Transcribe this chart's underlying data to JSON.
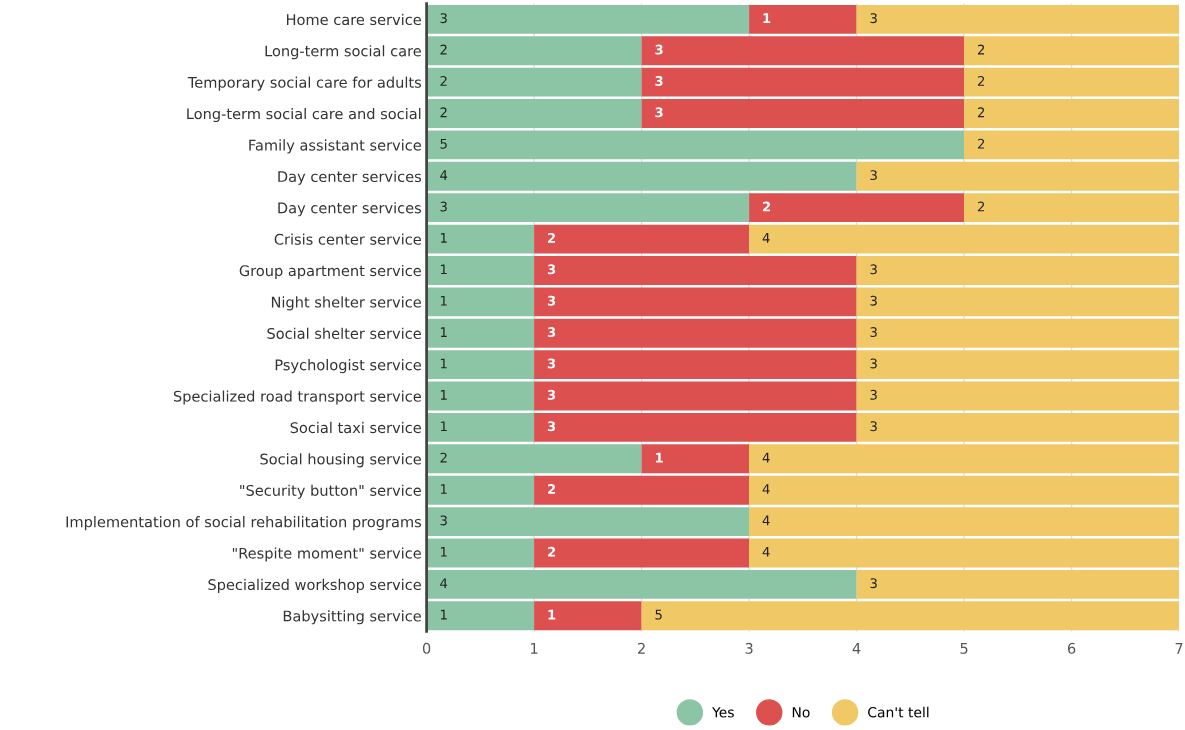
{
  "chart_data": {
    "type": "bar",
    "orientation": "horizontal",
    "stacked": true,
    "grid": "x",
    "legend": "bottom",
    "categories": [
      "Home care service",
      "Long-term social care",
      "Temporary social care for adults",
      "Long-term social care and social",
      "Family assistant service",
      "Day center services",
      "Day center services",
      "Crisis center service",
      "Group apartment service",
      "Night shelter service",
      "Social shelter service",
      "Psychologist service",
      "Specialized road transport service",
      "Social taxi service",
      "Social housing service",
      "\"Security button\" service",
      "Implementation of social rehabilitation programs",
      "\"Respite moment\" service",
      "Specialized workshop service",
      "Babysitting service"
    ],
    "series": [
      {
        "name": "Yes",
        "color": "#8cc5a5",
        "values": [
          3,
          2,
          2,
          2,
          5,
          4,
          3,
          1,
          1,
          1,
          1,
          1,
          1,
          1,
          2,
          1,
          3,
          1,
          4,
          1
        ],
        "value_labels": [
          "3",
          "2",
          "2",
          "2",
          "5",
          "4",
          "3",
          "1",
          "1",
          "1",
          "1",
          "1",
          "1",
          "1",
          "2",
          "1",
          "3",
          "1",
          "4",
          "1"
        ]
      },
      {
        "name": "No",
        "color": "#dc5050",
        "values": [
          1,
          3,
          3,
          3,
          0,
          0,
          2,
          2,
          3,
          3,
          3,
          3,
          3,
          3,
          1,
          2,
          0,
          2,
          0,
          1
        ],
        "value_labels": [
          "1",
          "3",
          "3",
          "3",
          null,
          null,
          "2",
          "2",
          "3",
          "3",
          "3",
          "3",
          "3",
          "3",
          "1",
          "2",
          null,
          "2",
          null,
          "1"
        ]
      },
      {
        "name": "Can't tell",
        "color": "#f0c866",
        "values": [
          3,
          2,
          2,
          2,
          2,
          3,
          2,
          4,
          3,
          3,
          3,
          3,
          3,
          3,
          4,
          4,
          4,
          4,
          3,
          5
        ],
        "value_labels": [
          "3",
          "2",
          "2",
          "2",
          "2",
          "3",
          "2",
          "4",
          "3",
          "3",
          "3",
          "3",
          "3",
          "3",
          "4",
          "4",
          "4",
          "4",
          "3",
          "5"
        ]
      }
    ],
    "xlim": [
      0,
      7
    ],
    "xticks": [
      0,
      1,
      2,
      3,
      4,
      5,
      6,
      7
    ]
  }
}
